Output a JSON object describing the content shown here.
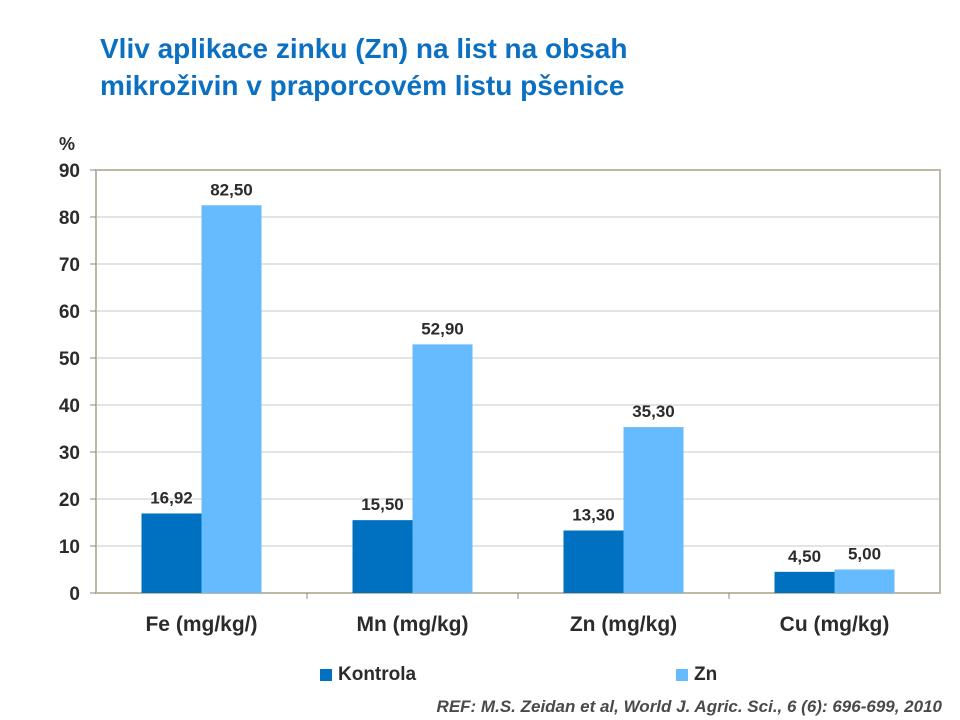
{
  "title_lines": [
    "Vliv aplikace zinku (Zn) na list na obsah",
    "mikroživin v praporcovém listu pšenice"
  ],
  "source": "REF: M.S. Zeidan et al, World J. Agric. Sci., 6 (6): 696-699, 2010",
  "colors": {
    "title": "#0b6fc2",
    "kontrola": "#0070c0",
    "zn": "#66bbff",
    "frame": "#bdb9a4"
  },
  "chart_data": {
    "type": "bar",
    "categories": [
      "Fe (mg/kg/)",
      "Mn (mg/kg)",
      "Zn (mg/kg)",
      "Cu (mg/kg)"
    ],
    "series": [
      {
        "name": "Kontrola",
        "values": [
          16.92,
          15.5,
          13.3,
          4.5
        ],
        "labels": [
          "16,92",
          "15,50",
          "13,30",
          "4,50"
        ]
      },
      {
        "name": "Zn",
        "values": [
          82.5,
          52.9,
          35.3,
          5.0
        ],
        "labels": [
          "82,50",
          "52,90",
          "35,30",
          "5,00"
        ]
      }
    ],
    "y_unit_label": "%",
    "ylim": [
      0,
      90
    ],
    "yticks": [
      0,
      10,
      20,
      30,
      40,
      50,
      60,
      70,
      80,
      90
    ],
    "grid": true,
    "legend_position": "bottom"
  }
}
